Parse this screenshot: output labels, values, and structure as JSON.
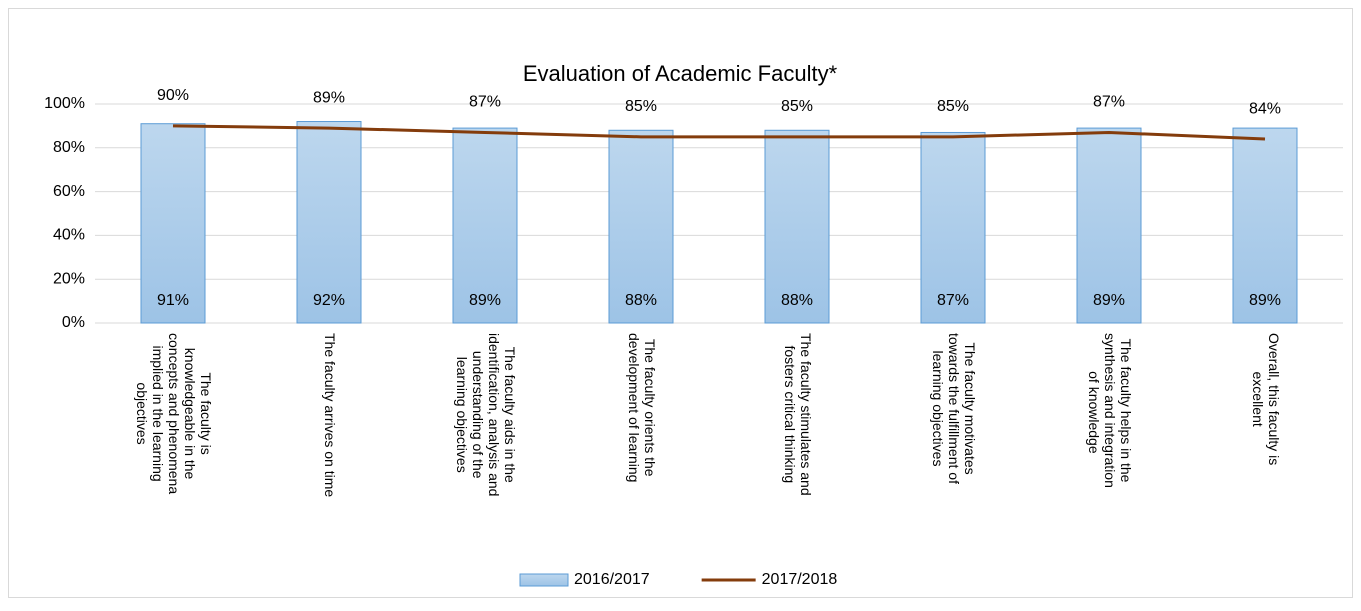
{
  "chart_data": {
    "type": "bar_line",
    "title": "Evaluation of Academic Faculty*",
    "categories": [
      "The faculty is\nknowledgeable in the\nconcepts and phenomena\nimplied in the learning\nobjectives",
      "The faculty arrives on time",
      "The faculty aids in the\nidentification, analysis and\nunderstanding of the\nlearning objectives",
      "The faculty orients the\ndevelopment of learning",
      "The faculty stimulates and\nfosters critical thinking",
      "The faculty motivates\ntowards the fulfillment of\nlearning objectives",
      "The faculty helps in the\nsynthesis and integration\n of  knowledge",
      "Overall, this faculty is\nexcellent"
    ],
    "series": [
      {
        "name": "2016/2017",
        "type": "bar",
        "color": "#9dc3e6",
        "edge": "#5b9bd5",
        "values": [
          91,
          92,
          89,
          88,
          88,
          87,
          89,
          89
        ],
        "value_labels": [
          "91%",
          "92%",
          "89%",
          "88%",
          "88%",
          "87%",
          "89%",
          "89%"
        ]
      },
      {
        "name": "2017/2018",
        "type": "line",
        "color": "#843c0c",
        "values": [
          90,
          89,
          87,
          85,
          85,
          85,
          87,
          84
        ],
        "value_labels": [
          "90%",
          "89%",
          "87%",
          "85%",
          "85%",
          "85%",
          "87%",
          "84%"
        ]
      }
    ],
    "ylim": [
      0,
      100
    ],
    "yticks": [
      {
        "value": 0,
        "label": "0%"
      },
      {
        "value": 20,
        "label": "20%"
      },
      {
        "value": 40,
        "label": "40%"
      },
      {
        "value": 60,
        "label": "60%"
      },
      {
        "value": 80,
        "label": "80%"
      },
      {
        "value": 100,
        "label": "100%"
      }
    ],
    "grid": true,
    "legend": "bottom"
  }
}
